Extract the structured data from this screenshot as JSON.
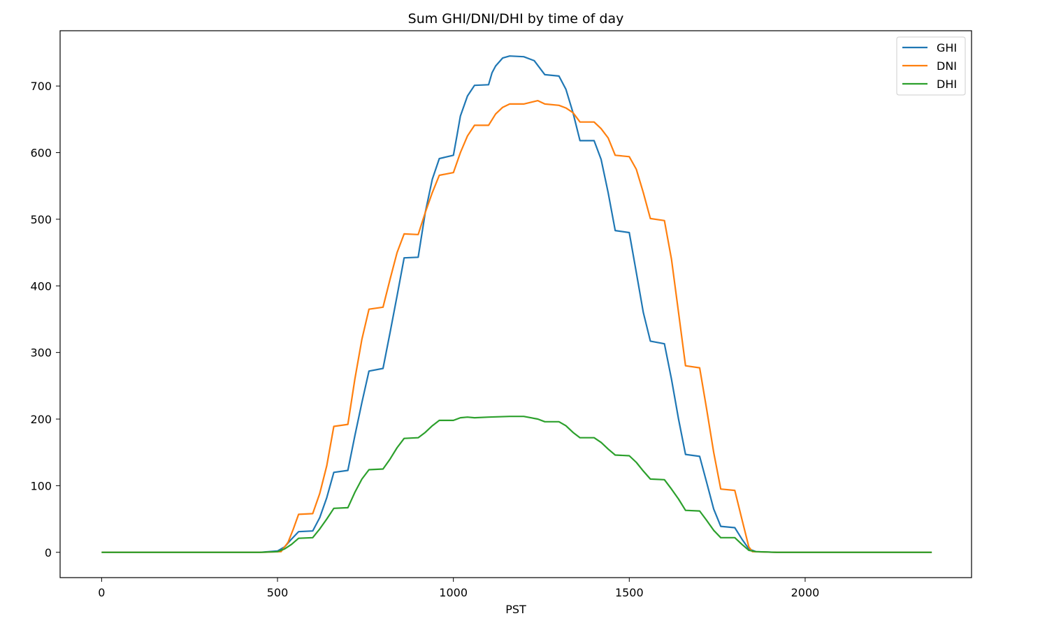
{
  "chart_data": {
    "type": "line",
    "title": "Sum GHI/DNI/DHI by time of day",
    "xlabel": "PST",
    "ylabel": "",
    "xlim": [
      -118,
      2473
    ],
    "ylim": [
      -38,
      783
    ],
    "xticks": [
      0,
      500,
      1000,
      1500,
      2000
    ],
    "yticks": [
      0,
      100,
      200,
      300,
      400,
      500,
      600,
      700
    ],
    "grid": false,
    "legend_position": "upper right",
    "series": [
      {
        "name": "GHI",
        "color": "#1f77b4",
        "points": [
          [
            0,
            0
          ],
          [
            450,
            0
          ],
          [
            500,
            2
          ],
          [
            520,
            8
          ],
          [
            540,
            20
          ],
          [
            560,
            31
          ],
          [
            600,
            32
          ],
          [
            620,
            52
          ],
          [
            640,
            82
          ],
          [
            660,
            120
          ],
          [
            700,
            123
          ],
          [
            720,
            175
          ],
          [
            740,
            225
          ],
          [
            760,
            272
          ],
          [
            800,
            276
          ],
          [
            820,
            330
          ],
          [
            840,
            385
          ],
          [
            860,
            442
          ],
          [
            900,
            443
          ],
          [
            920,
            510
          ],
          [
            940,
            560
          ],
          [
            960,
            591
          ],
          [
            1000,
            596
          ],
          [
            1010,
            625
          ],
          [
            1020,
            655
          ],
          [
            1040,
            685
          ],
          [
            1060,
            701
          ],
          [
            1100,
            702
          ],
          [
            1110,
            720
          ],
          [
            1120,
            730
          ],
          [
            1140,
            742
          ],
          [
            1160,
            745
          ],
          [
            1200,
            744
          ],
          [
            1230,
            738
          ],
          [
            1260,
            717
          ],
          [
            1300,
            715
          ],
          [
            1320,
            695
          ],
          [
            1340,
            660
          ],
          [
            1360,
            618
          ],
          [
            1400,
            618
          ],
          [
            1420,
            590
          ],
          [
            1440,
            540
          ],
          [
            1460,
            483
          ],
          [
            1500,
            480
          ],
          [
            1520,
            420
          ],
          [
            1540,
            360
          ],
          [
            1560,
            317
          ],
          [
            1600,
            313
          ],
          [
            1620,
            260
          ],
          [
            1640,
            200
          ],
          [
            1660,
            147
          ],
          [
            1700,
            144
          ],
          [
            1720,
            105
          ],
          [
            1740,
            65
          ],
          [
            1760,
            39
          ],
          [
            1800,
            37
          ],
          [
            1820,
            20
          ],
          [
            1840,
            5
          ],
          [
            1860,
            1
          ],
          [
            1920,
            0
          ],
          [
            2360,
            0
          ]
        ]
      },
      {
        "name": "DNI",
        "color": "#ff7f0e",
        "points": [
          [
            0,
            0
          ],
          [
            450,
            0
          ],
          [
            510,
            1
          ],
          [
            530,
            15
          ],
          [
            545,
            35
          ],
          [
            560,
            57
          ],
          [
            600,
            58
          ],
          [
            620,
            88
          ],
          [
            640,
            130
          ],
          [
            660,
            189
          ],
          [
            700,
            192
          ],
          [
            720,
            260
          ],
          [
            740,
            320
          ],
          [
            760,
            365
          ],
          [
            800,
            368
          ],
          [
            820,
            410
          ],
          [
            840,
            450
          ],
          [
            860,
            478
          ],
          [
            900,
            477
          ],
          [
            920,
            510
          ],
          [
            940,
            540
          ],
          [
            960,
            566
          ],
          [
            1000,
            570
          ],
          [
            1020,
            600
          ],
          [
            1040,
            625
          ],
          [
            1060,
            641
          ],
          [
            1100,
            641
          ],
          [
            1120,
            658
          ],
          [
            1140,
            668
          ],
          [
            1160,
            673
          ],
          [
            1200,
            673
          ],
          [
            1240,
            678
          ],
          [
            1260,
            673
          ],
          [
            1300,
            671
          ],
          [
            1320,
            667
          ],
          [
            1340,
            660
          ],
          [
            1360,
            646
          ],
          [
            1400,
            646
          ],
          [
            1420,
            636
          ],
          [
            1440,
            622
          ],
          [
            1460,
            596
          ],
          [
            1500,
            594
          ],
          [
            1520,
            575
          ],
          [
            1540,
            540
          ],
          [
            1560,
            501
          ],
          [
            1600,
            498
          ],
          [
            1620,
            440
          ],
          [
            1640,
            360
          ],
          [
            1660,
            280
          ],
          [
            1700,
            277
          ],
          [
            1720,
            215
          ],
          [
            1740,
            150
          ],
          [
            1760,
            95
          ],
          [
            1800,
            93
          ],
          [
            1820,
            50
          ],
          [
            1840,
            8
          ],
          [
            1850,
            1
          ],
          [
            1920,
            0
          ],
          [
            2360,
            0
          ]
        ]
      },
      {
        "name": "DHI",
        "color": "#2ca02c",
        "points": [
          [
            0,
            0
          ],
          [
            450,
            0
          ],
          [
            500,
            1
          ],
          [
            520,
            5
          ],
          [
            540,
            12
          ],
          [
            560,
            21
          ],
          [
            600,
            22
          ],
          [
            620,
            35
          ],
          [
            640,
            50
          ],
          [
            660,
            66
          ],
          [
            700,
            67
          ],
          [
            720,
            90
          ],
          [
            740,
            110
          ],
          [
            760,
            124
          ],
          [
            800,
            125
          ],
          [
            820,
            140
          ],
          [
            840,
            157
          ],
          [
            860,
            171
          ],
          [
            900,
            172
          ],
          [
            920,
            180
          ],
          [
            940,
            190
          ],
          [
            960,
            198
          ],
          [
            1000,
            198
          ],
          [
            1020,
            202
          ],
          [
            1040,
            203
          ],
          [
            1060,
            202
          ],
          [
            1100,
            203
          ],
          [
            1160,
            204
          ],
          [
            1200,
            204
          ],
          [
            1240,
            200
          ],
          [
            1260,
            196
          ],
          [
            1300,
            196
          ],
          [
            1320,
            190
          ],
          [
            1340,
            180
          ],
          [
            1360,
            172
          ],
          [
            1400,
            172
          ],
          [
            1420,
            165
          ],
          [
            1440,
            155
          ],
          [
            1460,
            146
          ],
          [
            1500,
            145
          ],
          [
            1520,
            135
          ],
          [
            1540,
            122
          ],
          [
            1560,
            110
          ],
          [
            1600,
            109
          ],
          [
            1620,
            95
          ],
          [
            1640,
            80
          ],
          [
            1660,
            63
          ],
          [
            1700,
            62
          ],
          [
            1720,
            48
          ],
          [
            1740,
            33
          ],
          [
            1760,
            22
          ],
          [
            1800,
            22
          ],
          [
            1820,
            12
          ],
          [
            1840,
            3
          ],
          [
            1860,
            1
          ],
          [
            1920,
            0
          ],
          [
            2360,
            0
          ]
        ]
      }
    ]
  }
}
